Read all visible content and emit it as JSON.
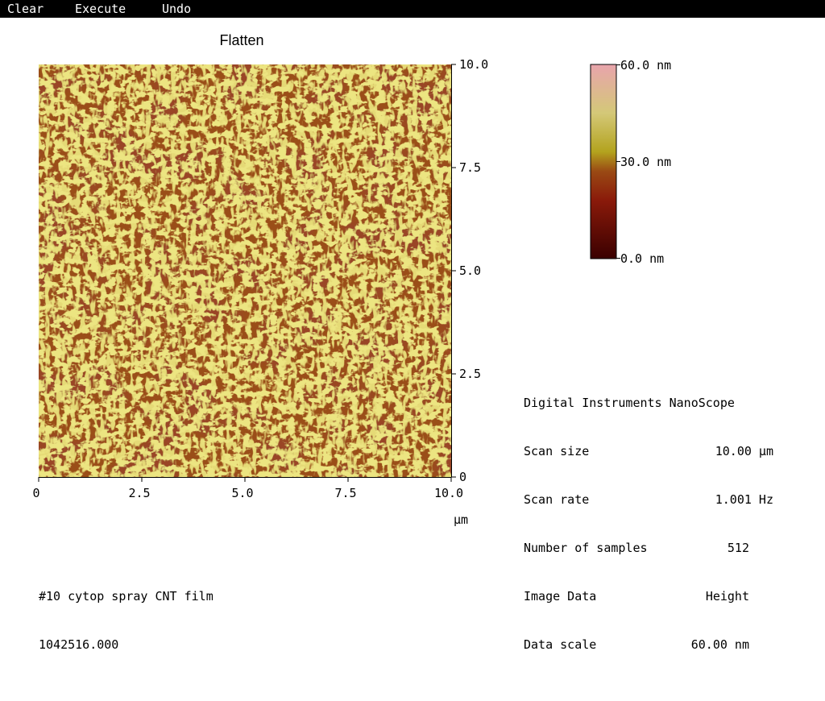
{
  "menu": {
    "items": [
      {
        "label": "Clear"
      },
      {
        "label": "Execute"
      },
      {
        "label": "Undo"
      }
    ]
  },
  "image": {
    "title": "Flatten",
    "x_axis": {
      "ticks": [
        "0",
        "2.5",
        "5.0",
        "7.5",
        "10.0"
      ],
      "unit": "µm"
    },
    "y_axis": {
      "ticks": [
        "0",
        "2.5",
        "5.0",
        "7.5",
        "10.0"
      ]
    },
    "colormap": [
      "#3a0000",
      "#8a1a0a",
      "#b4541e",
      "#b3a31e",
      "#d8d070",
      "#e6a0a8"
    ]
  },
  "colorbar": {
    "max_label": "60.0 nm",
    "mid_label": "30.0 nm",
    "min_label": "0.0 nm"
  },
  "info": {
    "header": "Digital Instruments NanoScope",
    "rows": [
      {
        "label": "Scan size",
        "value": "10.00 µm"
      },
      {
        "label": "Scan rate",
        "value": "1.001 Hz"
      },
      {
        "label": "Number of samples",
        "value": "512"
      },
      {
        "label": "Image Data",
        "value": "Height"
      },
      {
        "label": "Data scale",
        "value": "60.00 nm"
      }
    ]
  },
  "caption": {
    "line1": "#10 cytop spray CNT film",
    "line2": "1042516.000"
  }
}
